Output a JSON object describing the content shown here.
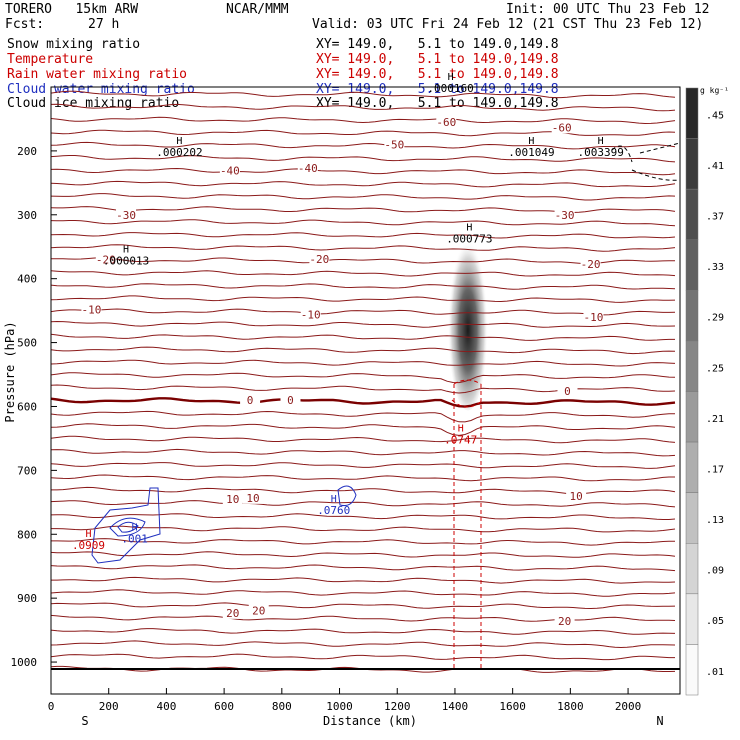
{
  "header": {
    "model": "TORERO   15km ARW",
    "fcst_label": "Fcst:",
    "fcst_value": "27 h",
    "center": "NCAR/MMM",
    "init": "Init: 00 UTC Thu 23 Feb 12",
    "valid": "Valid: 03 UTC Fri 24 Feb 12 (21 CST Thu 23 Feb 12)"
  },
  "fields": [
    {
      "name": "Snow mixing ratio",
      "xy": "XY= 149.0,   5.1 to 149.0,149.8",
      "color": "#000000"
    },
    {
      "name": "Temperature",
      "xy": "XY= 149.0,   5.1 to 149.0,149.8",
      "color": "#cc0000"
    },
    {
      "name": "Rain water mixing ratio",
      "xy": "XY= 149.0,   5.1 to 149.0,149.8",
      "color": "#cc0000"
    },
    {
      "name": "Cloud water mixing ratio",
      "xy": "XY= 149.0,   5.1 to 149.0,149.8",
      "color": "#1f2fbf"
    },
    {
      "name": "Cloud ice mixing ratio",
      "xy": "XY= 149.0,   5.1 to 149.0,149.8",
      "color": "#000000"
    }
  ],
  "colorbar": {
    "unit": "g kg⁻¹",
    "labels": [
      ".45",
      ".41",
      ".37",
      ".33",
      ".29",
      ".25",
      ".21",
      ".17",
      ".13",
      ".09",
      ".05",
      ".01"
    ]
  },
  "chart_data": {
    "type": "cross-section",
    "xlabel": "Distance (km)",
    "ylabel": "Pressure (hPa)",
    "xlim": [
      0,
      2180
    ],
    "ylim": [
      1050,
      100
    ],
    "xticks": [
      0,
      200,
      400,
      600,
      800,
      1000,
      1200,
      1400,
      1600,
      1800,
      2000
    ],
    "yticks": [
      200,
      300,
      400,
      500,
      600,
      700,
      800,
      900,
      1000
    ],
    "x_end_labels": {
      "left": "S",
      "right": "N"
    },
    "isotherm_interval": 5,
    "isotherm_labels": [
      {
        "value": "-60",
        "x": 1370,
        "p": 155
      },
      {
        "value": "-60",
        "x": 1770,
        "p": 163
      },
      {
        "value": "-50",
        "x": 1190,
        "p": 190
      },
      {
        "value": "-40",
        "x": 620,
        "p": 231
      },
      {
        "value": "-40",
        "x": 890,
        "p": 227
      },
      {
        "value": "-30",
        "x": 260,
        "p": 300
      },
      {
        "value": "-30",
        "x": 1780,
        "p": 300
      },
      {
        "value": "-20",
        "x": 190,
        "p": 370
      },
      {
        "value": "-20",
        "x": 930,
        "p": 369
      },
      {
        "value": "-20",
        "x": 1870,
        "p": 377
      },
      {
        "value": "-10",
        "x": 140,
        "p": 448
      },
      {
        "value": "-10",
        "x": 900,
        "p": 456
      },
      {
        "value": "-10",
        "x": 1880,
        "p": 460
      },
      {
        "value": "0",
        "x": 690,
        "p": 590
      },
      {
        "value": "0",
        "x": 830,
        "p": 590
      },
      {
        "value": "0",
        "x": 1790,
        "p": 576
      },
      {
        "value": "10",
        "x": 630,
        "p": 745
      },
      {
        "value": "10",
        "x": 700,
        "p": 743
      },
      {
        "value": "10",
        "x": 1820,
        "p": 740
      },
      {
        "value": "20",
        "x": 630,
        "p": 923
      },
      {
        "value": "20",
        "x": 720,
        "p": 919
      },
      {
        "value": "20",
        "x": 1780,
        "p": 936
      }
    ],
    "maxima": [
      {
        "value": ".000202",
        "x": 445,
        "p": 205,
        "color": "#000000"
      },
      {
        "value": ".001049",
        "x": 1665,
        "p": 205,
        "color": "#000000"
      },
      {
        "value": ".003399",
        "x": 1905,
        "p": 205,
        "color": "#000000"
      },
      {
        "value": ".000773",
        "x": 1450,
        "p": 340,
        "color": "#000000"
      },
      {
        "value": ".000013",
        "x": 260,
        "p": 375,
        "color": "#000000"
      },
      {
        "value": ".000160",
        "x": 1385,
        "p": 105,
        "color": "#000000"
      },
      {
        "value": ".0747",
        "x": 1420,
        "p": 655,
        "color": "#cc0000"
      },
      {
        "value": ".0760",
        "x": 980,
        "p": 765,
        "color": "#1f2fbf"
      },
      {
        "value": ".001",
        "x": 290,
        "p": 810,
        "color": "#1f2fbf"
      },
      {
        "value": ".0909",
        "x": 130,
        "p": 820,
        "color": "#cc0000"
      }
    ],
    "snow_core": {
      "x": 1445,
      "p_top": 320,
      "p_bottom": 600,
      "max": 0.47
    }
  }
}
